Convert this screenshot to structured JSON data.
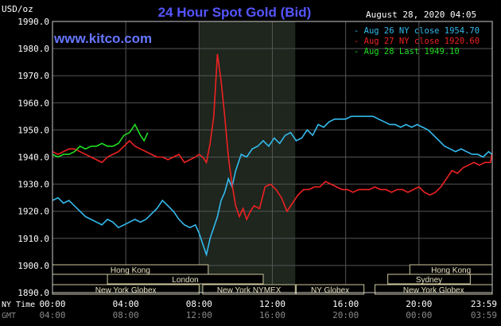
{
  "chart_data": {
    "type": "line",
    "title": "24 Hour Spot Gold (Bid)",
    "watermark": "www.kitco.com",
    "timestamp": "August 28, 2020 04:05",
    "ylabel": "USD/oz",
    "ylim": [
      1890,
      1990
    ],
    "yticks": [
      "1890.0",
      "1900.0",
      "1910.0",
      "1920.0",
      "1930.0",
      "1940.0",
      "1950.0",
      "1960.0",
      "1970.0",
      "1980.0",
      "1990.0"
    ],
    "x_axis_rows": [
      {
        "label": "NY Time",
        "ticks": [
          "00:00",
          "04:00",
          "08:00",
          "12:00",
          "16:00",
          "20:00",
          "23:59"
        ]
      },
      {
        "label": "GMT",
        "ticks": [
          "04:00",
          "08:00",
          "12:00",
          "16:00",
          "20:00",
          "00:00",
          "03:59"
        ]
      }
    ],
    "xlim": [
      0,
      24
    ],
    "grid": true,
    "legend_position": "top-right",
    "highlight_band_hours": [
      8,
      13.25
    ],
    "series": [
      {
        "name": "Aug 26 NY close 1954.70",
        "color": "#33bbee",
        "x": [
          0,
          0.3,
          0.6,
          0.9,
          1.2,
          1.5,
          1.8,
          2.1,
          2.4,
          2.7,
          3.0,
          3.3,
          3.6,
          3.9,
          4.2,
          4.5,
          4.8,
          5.1,
          5.4,
          5.7,
          6.0,
          6.3,
          6.6,
          6.9,
          7.2,
          7.5,
          7.8,
          8.0,
          8.2,
          8.4,
          8.6,
          8.8,
          9.0,
          9.2,
          9.4,
          9.6,
          9.8,
          10.0,
          10.3,
          10.6,
          10.9,
          11.2,
          11.5,
          11.8,
          12.1,
          12.4,
          12.7,
          13.0,
          13.3,
          13.6,
          13.9,
          14.2,
          14.5,
          14.8,
          15.1,
          15.4,
          15.7,
          16.0,
          16.3,
          16.6,
          16.9,
          17.2,
          17.5,
          17.8,
          18.1,
          18.4,
          18.7,
          19.0,
          19.3,
          19.6,
          19.9,
          20.2,
          20.5,
          20.8,
          21.1,
          21.4,
          21.7,
          22.0,
          22.3,
          22.6,
          22.9,
          23.2,
          23.5,
          23.8,
          23.98
        ],
        "values": [
          1924,
          1925,
          1923,
          1924,
          1922,
          1920,
          1918,
          1917,
          1916,
          1915,
          1917,
          1916,
          1914,
          1915,
          1916,
          1917,
          1916,
          1917,
          1919,
          1921,
          1924,
          1922,
          1920,
          1917,
          1915,
          1914,
          1915,
          1912,
          1908,
          1904,
          1910,
          1914,
          1918,
          1924,
          1927,
          1932,
          1929,
          1935,
          1941,
          1940,
          1943,
          1944,
          1946,
          1944,
          1947,
          1945,
          1948,
          1949,
          1946,
          1947,
          1950,
          1948,
          1952,
          1951,
          1953,
          1954,
          1954,
          1954,
          1955,
          1955,
          1955,
          1955,
          1955,
          1954,
          1953,
          1952,
          1952,
          1951,
          1952,
          1951,
          1952,
          1951,
          1950,
          1948,
          1946,
          1944,
          1943,
          1942,
          1943,
          1942,
          1941,
          1941,
          1940,
          1942,
          1941
        ]
      },
      {
        "name": "Aug 27 NY close 1920.60",
        "color": "#ee2222",
        "x": [
          0,
          0.3,
          0.6,
          0.9,
          1.2,
          1.5,
          1.8,
          2.1,
          2.4,
          2.7,
          3.0,
          3.3,
          3.6,
          3.9,
          4.2,
          4.5,
          4.8,
          5.1,
          5.4,
          5.7,
          6.0,
          6.3,
          6.6,
          6.9,
          7.2,
          7.5,
          7.8,
          8.0,
          8.2,
          8.4,
          8.6,
          8.8,
          9.0,
          9.2,
          9.4,
          9.6,
          9.8,
          10.0,
          10.2,
          10.4,
          10.6,
          10.8,
          11.0,
          11.3,
          11.6,
          11.9,
          12.2,
          12.5,
          12.8,
          13.1,
          13.4,
          13.7,
          14.0,
          14.3,
          14.6,
          14.9,
          15.2,
          15.5,
          15.8,
          16.1,
          16.4,
          16.7,
          17.0,
          17.3,
          17.6,
          17.9,
          18.2,
          18.5,
          18.8,
          19.1,
          19.4,
          19.7,
          20.0,
          20.3,
          20.6,
          20.9,
          21.2,
          21.5,
          21.8,
          22.1,
          22.4,
          22.7,
          23.0,
          23.3,
          23.6,
          23.9,
          23.98
        ],
        "values": [
          1942,
          1941,
          1942,
          1943,
          1943,
          1942,
          1941,
          1940,
          1939,
          1938,
          1940,
          1941,
          1942,
          1944,
          1946,
          1944,
          1943,
          1942,
          1941,
          1940,
          1940,
          1939,
          1940,
          1941,
          1938,
          1939,
          1940,
          1941,
          1940,
          1938,
          1945,
          1955,
          1978,
          1968,
          1955,
          1940,
          1930,
          1922,
          1918,
          1921,
          1917,
          1920,
          1922,
          1921,
          1929,
          1930,
          1928,
          1925,
          1920,
          1923,
          1926,
          1928,
          1928,
          1929,
          1929,
          1931,
          1930,
          1929,
          1928,
          1928,
          1927,
          1928,
          1928,
          1928,
          1929,
          1928,
          1928,
          1927,
          1928,
          1928,
          1927,
          1928,
          1929,
          1927,
          1926,
          1927,
          1929,
          1932,
          1935,
          1934,
          1936,
          1937,
          1938,
          1937,
          1938,
          1938,
          1941
        ]
      },
      {
        "name": "Aug 28 Last 1949.10",
        "color": "#22dd22",
        "x": [
          0,
          0.3,
          0.6,
          0.9,
          1.2,
          1.5,
          1.8,
          2.1,
          2.4,
          2.7,
          3.0,
          3.3,
          3.6,
          3.9,
          4.2,
          4.5,
          4.8,
          5.0,
          5.2
        ],
        "values": [
          1941,
          1940,
          1941,
          1941,
          1942,
          1944,
          1943,
          1944,
          1944,
          1945,
          1944,
          1944,
          1945,
          1948,
          1949,
          1952,
          1948,
          1946,
          1949
        ]
      }
    ],
    "sessions": [
      {
        "label": "Hong Kong",
        "row": 0,
        "start": 0,
        "end": 8.5
      },
      {
        "label": "London",
        "row": 1,
        "start": 3.0,
        "end": 11.5
      },
      {
        "label": "New York Globex",
        "row": 2,
        "start": 0,
        "end": 8.0
      },
      {
        "label": "New York NYMEX",
        "row": 2,
        "start": 8.2,
        "end": 13.25
      },
      {
        "label": "NY Globex",
        "row": 2,
        "start": 13.3,
        "end": 17.0
      },
      {
        "label": "Hong Kong",
        "row": 0,
        "start": 19.5,
        "end": 24
      },
      {
        "label": "Sydney",
        "row": 1,
        "start": 18.3,
        "end": 22.8
      },
      {
        "label": "New York Globex",
        "row": 2,
        "start": 17.6,
        "end": 24
      }
    ]
  }
}
